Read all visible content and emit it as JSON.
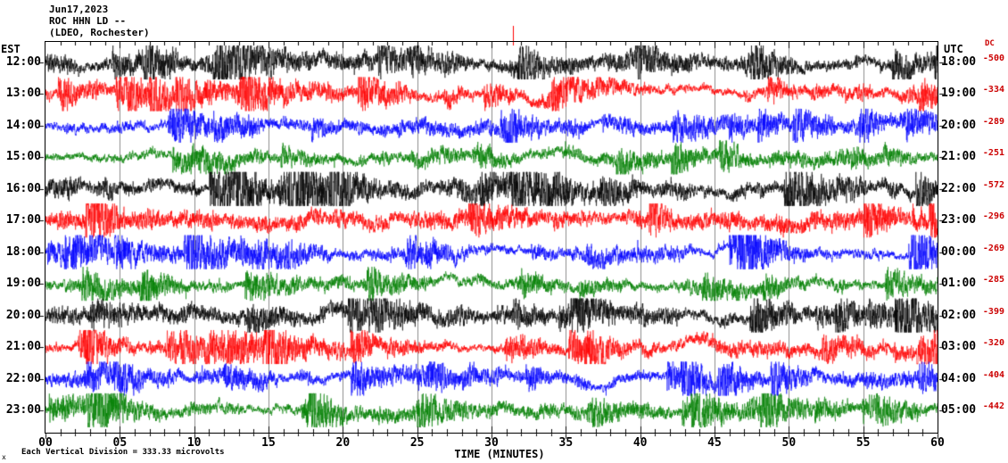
{
  "header": {
    "date": "Jun17,2023",
    "station": "ROC HHN LD --",
    "location": "(LDEO, Rochester)"
  },
  "axes": {
    "left_label": "EST",
    "right_label": "UTC",
    "dc_label": "DC",
    "x_label": "TIME (MINUTES)"
  },
  "footer": {
    "scale_note": "Each Vertical Division =  333.33 microvolts",
    "corner_mark": "x"
  },
  "colors": {
    "background": "#ffffff",
    "grid": "#8c8c8c",
    "dc_text": "#cc0000",
    "marker": "#ff0000",
    "trace_black": "#000000",
    "trace_red": "#ff0000",
    "trace_blue": "#0000ff",
    "trace_green": "#008000"
  },
  "chart_data": {
    "type": "line",
    "title": "ROC HHN LD -- (LDEO, Rochester)",
    "date": "Jun17,2023",
    "xlabel": "TIME (MINUTES)",
    "x_range": [
      0,
      60
    ],
    "x_ticks": [
      "00",
      "05",
      "10",
      "15",
      "20",
      "25",
      "30",
      "35",
      "40",
      "45",
      "50",
      "55",
      "60"
    ],
    "minutes_per_line": 60,
    "vertical_division_microvolts": 333.33,
    "grid": "vertical lines every 5 minutes",
    "series": [
      {
        "name": "12:00 EST / 18:00 UTC",
        "est": "12:00",
        "utc": "18:00",
        "dc": "-500",
        "color": "#000000"
      },
      {
        "name": "13:00 EST / 19:00 UTC",
        "est": "13:00",
        "utc": "19:00",
        "dc": "-334",
        "color": "#ff0000"
      },
      {
        "name": "14:00 EST / 20:00 UTC",
        "est": "14:00",
        "utc": "20:00",
        "dc": "-289",
        "color": "#0000ff"
      },
      {
        "name": "15:00 EST / 21:00 UTC",
        "est": "15:00",
        "utc": "21:00",
        "dc": "-251",
        "color": "#008000"
      },
      {
        "name": "16:00 EST / 22:00 UTC",
        "est": "16:00",
        "utc": "22:00",
        "dc": "-572",
        "color": "#000000"
      },
      {
        "name": "17:00 EST / 23:00 UTC",
        "est": "17:00",
        "utc": "23:00",
        "dc": "-296",
        "color": "#ff0000"
      },
      {
        "name": "18:00 EST / 00:00 UTC",
        "est": "18:00",
        "utc": "00:00",
        "dc": "-269",
        "color": "#0000ff"
      },
      {
        "name": "19:00 EST / 01:00 UTC",
        "est": "19:00",
        "utc": "01:00",
        "dc": "-285",
        "color": "#008000"
      },
      {
        "name": "20:00 EST / 02:00 UTC",
        "est": "20:00",
        "utc": "02:00",
        "dc": "-399",
        "color": "#000000"
      },
      {
        "name": "21:00 EST / 03:00 UTC",
        "est": "21:00",
        "utc": "03:00",
        "dc": "-320",
        "color": "#ff0000"
      },
      {
        "name": "22:00 EST / 04:00 UTC",
        "est": "22:00",
        "utc": "04:00",
        "dc": "-404",
        "color": "#0000ff"
      },
      {
        "name": "23:00 EST / 05:00 UTC",
        "est": "23:00",
        "utc": "05:00",
        "dc": "-442",
        "color": "#008000"
      }
    ]
  }
}
